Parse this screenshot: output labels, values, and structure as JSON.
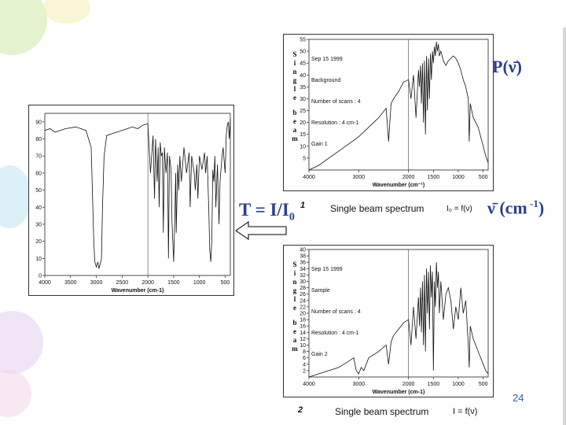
{
  "slide": {
    "page_number": "24",
    "accent_color": "#2c3e8f",
    "arrow_icon": "left-arrow-icon"
  },
  "equations": {
    "transmittance_main": "T = I/I",
    "transmittance_sub": "0",
    "transmittance_sup": "1",
    "background_label": "P(ν̄)",
    "wavenumber_symbol": "ν̄",
    "wavenumber_unit": " (cm",
    "wavenumber_unit_exp": " -1",
    "wavenumber_unit_close": ")"
  },
  "background_panel": {
    "date": "Sep 15 1999",
    "name": "Background",
    "scans": "Number of scans : 4",
    "resolution": "Resolution : 4 cm-1",
    "gain": "Gain 1",
    "caption": "Single beam spectrum",
    "formula": "I₀ = f(ν)",
    "number": "1"
  },
  "sample_panel": {
    "date": "Sep 15 1999",
    "name": "Sample",
    "scans": "Number of scans : 4",
    "resolution": "Resolution : 4 cm-1",
    "gain": "Gain 2",
    "caption": "Single beam spectrum",
    "formula": "I = f(ν)",
    "number": "2"
  },
  "chart_data": [
    {
      "type": "line",
      "panel": "transmittance",
      "xlabel": "Wavenumber (cm-1)",
      "ylabel": "",
      "xlim": [
        4000,
        400
      ],
      "ylim": [
        0,
        95
      ],
      "xticks": [
        4000,
        3500,
        3000,
        2500,
        2000,
        1500,
        1000,
        500
      ],
      "yticks": [
        0,
        10,
        20,
        30,
        40,
        50,
        60,
        70,
        80,
        90
      ],
      "series": [
        {
          "x": [
            4000,
            3900,
            3800,
            3700,
            3600,
            3400,
            3200,
            3100,
            3050,
            3030,
            3000,
            2970,
            2950,
            2930,
            2900,
            2880,
            2850,
            2800,
            2700,
            2600,
            2500,
            2400,
            2300,
            2200,
            2100,
            2000,
            1950,
            1900,
            1870,
            1850,
            1820,
            1800,
            1780,
            1760,
            1740,
            1720,
            1700,
            1680,
            1650,
            1620,
            1600,
            1580,
            1550,
            1530,
            1500,
            1480,
            1460,
            1450,
            1420,
            1400,
            1380,
            1350,
            1300,
            1250,
            1200,
            1180,
            1150,
            1100,
            1080,
            1050,
            1030,
            1000,
            950,
            900,
            880,
            850,
            820,
            800,
            780,
            760,
            740,
            720,
            700,
            680,
            650,
            620,
            600,
            560,
            540,
            500,
            480,
            460,
            440,
            420,
            400
          ],
          "y": [
            85,
            86,
            84,
            85,
            86,
            87,
            85,
            75,
            20,
            8,
            5,
            8,
            4,
            6,
            10,
            40,
            70,
            82,
            83,
            84,
            85,
            86,
            87,
            86,
            88,
            89,
            60,
            82,
            45,
            80,
            55,
            75,
            40,
            78,
            70,
            72,
            25,
            75,
            60,
            72,
            10,
            70,
            62,
            30,
            8,
            30,
            60,
            25,
            65,
            50,
            70,
            55,
            75,
            60,
            72,
            40,
            70,
            60,
            50,
            65,
            45,
            70,
            62,
            72,
            60,
            70,
            40,
            15,
            8,
            20,
            62,
            55,
            70,
            40,
            65,
            30,
            55,
            70,
            75,
            60,
            82,
            88,
            90,
            80,
            92
          ]
        }
      ]
    },
    {
      "type": "line",
      "panel": "background",
      "xlabel": "Wavenumber (cm⁻¹)",
      "ylabel": "Single beam",
      "xlim": [
        4000,
        400
      ],
      "ylim": [
        0,
        55
      ],
      "xticks": [
        4000,
        3000,
        2000,
        1500,
        1000,
        500
      ],
      "yticks": [
        5,
        10,
        15,
        20,
        25,
        30,
        35,
        40,
        45,
        50,
        55
      ],
      "series": [
        {
          "x": [
            4000,
            3800,
            3600,
            3400,
            3200,
            3000,
            2800,
            2600,
            2450,
            2400,
            2350,
            2300,
            2200,
            2100,
            2000,
            1950,
            1900,
            1850,
            1800,
            1780,
            1760,
            1740,
            1720,
            1700,
            1680,
            1660,
            1640,
            1620,
            1600,
            1580,
            1560,
            1540,
            1520,
            1500,
            1480,
            1460,
            1440,
            1420,
            1400,
            1380,
            1350,
            1300,
            1250,
            1200,
            1150,
            1100,
            1050,
            1000,
            950,
            900,
            850,
            800,
            780,
            760,
            700,
            600,
            500,
            450,
            400
          ],
          "y": [
            0,
            2,
            5,
            8,
            11,
            14,
            18,
            22,
            26,
            12,
            28,
            30,
            33,
            37,
            38,
            30,
            40,
            22,
            42,
            35,
            44,
            28,
            45,
            20,
            46,
            15,
            48,
            25,
            47,
            30,
            49,
            38,
            50,
            45,
            52,
            48,
            54,
            50,
            53,
            48,
            50,
            46,
            44,
            46,
            47,
            48,
            47,
            45,
            42,
            38,
            35,
            30,
            12,
            28,
            22,
            18,
            10,
            6,
            3
          ]
        }
      ]
    },
    {
      "type": "line",
      "panel": "sample",
      "xlabel": "Wavenumber (cm-1)",
      "ylabel": "Single beam",
      "xlim": [
        4000,
        400
      ],
      "ylim": [
        0,
        40
      ],
      "xticks": [
        4000,
        3000,
        2000,
        1500,
        1000,
        500
      ],
      "yticks": [
        2,
        4,
        6,
        8,
        10,
        12,
        14,
        16,
        18,
        20,
        22,
        24,
        26,
        28,
        30,
        32,
        34,
        36,
        38,
        40
      ],
      "series": [
        {
          "x": [
            4000,
            3800,
            3600,
            3400,
            3200,
            3100,
            3050,
            3000,
            2950,
            2900,
            2850,
            2800,
            2600,
            2450,
            2400,
            2350,
            2300,
            2200,
            2100,
            2000,
            1950,
            1900,
            1850,
            1800,
            1780,
            1760,
            1740,
            1720,
            1700,
            1680,
            1660,
            1640,
            1620,
            1600,
            1580,
            1560,
            1540,
            1520,
            1500,
            1480,
            1460,
            1440,
            1420,
            1400,
            1380,
            1350,
            1300,
            1250,
            1200,
            1150,
            1100,
            1050,
            1000,
            950,
            900,
            850,
            800,
            780,
            760,
            700,
            600,
            500,
            450,
            400
          ],
          "y": [
            0,
            1,
            2,
            3,
            5,
            6,
            2,
            1,
            3,
            2,
            4,
            6,
            8,
            10,
            4,
            11,
            13,
            15,
            17,
            18,
            10,
            22,
            12,
            25,
            16,
            28,
            14,
            30,
            10,
            32,
            8,
            34,
            20,
            33,
            15,
            35,
            25,
            33,
            2,
            30,
            22,
            36,
            28,
            33,
            20,
            30,
            18,
            26,
            28,
            24,
            15,
            22,
            18,
            28,
            20,
            24,
            10,
            3,
            16,
            12,
            8,
            4,
            2,
            1
          ]
        }
      ]
    }
  ]
}
